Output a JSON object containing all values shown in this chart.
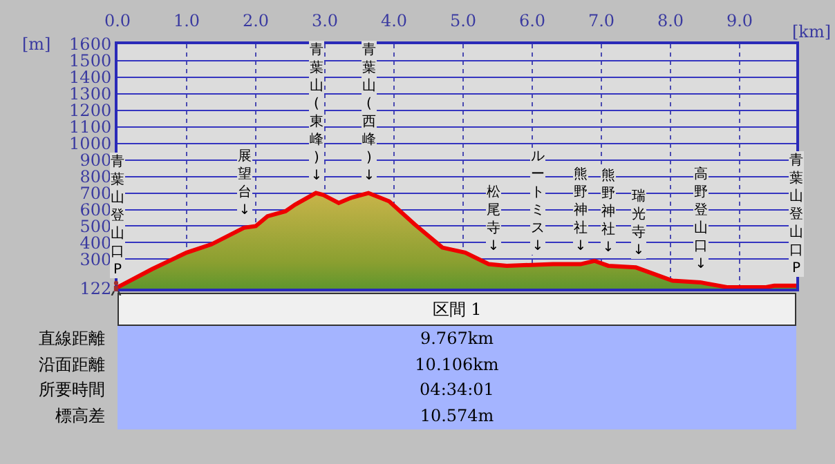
{
  "chart_data": {
    "type": "area",
    "xlabel": "[km]",
    "ylabel": "[m]",
    "x": [
      0,
      0.5,
      1.0,
      1.36,
      1.83,
      2.0,
      2.17,
      2.43,
      2.57,
      2.87,
      2.97,
      3.2,
      3.37,
      3.63,
      3.93,
      4.3,
      4.7,
      5.03,
      5.37,
      5.63,
      6.3,
      6.7,
      6.9,
      7.1,
      7.5,
      8.03,
      8.43,
      8.83,
      9.37,
      9.5,
      9.82
    ],
    "series": [
      {
        "color": "#ee0000",
        "values": [
          130,
          240,
          340,
          390,
          490,
          500,
          560,
          590,
          630,
          700,
          690,
          640,
          670,
          700,
          650,
          510,
          370,
          340,
          270,
          260,
          270,
          270,
          290,
          260,
          250,
          170,
          160,
          130,
          130,
          140,
          140
        ]
      }
    ],
    "xlim": [
      0,
      9.82
    ],
    "xticks": [
      {
        "value": 0,
        "label": "0.0"
      },
      {
        "value": 1,
        "label": "1.0"
      },
      {
        "value": 2,
        "label": "2.0"
      },
      {
        "value": 3,
        "label": "3.0"
      },
      {
        "value": 4,
        "label": "4.0"
      },
      {
        "value": 5,
        "label": "5.0"
      },
      {
        "value": 6,
        "label": "6.0"
      },
      {
        "value": 7,
        "label": "7.0"
      },
      {
        "value": 8,
        "label": "8.0"
      },
      {
        "value": 9,
        "label": "9.0"
      }
    ],
    "ylim": [
      122,
      1600
    ],
    "yticks": [
      122,
      300,
      400,
      500,
      600,
      700,
      800,
      900,
      1000,
      1100,
      1200,
      1300,
      1400,
      1500,
      1600
    ],
    "grid": true,
    "annotations": [
      {
        "text": "青葉山登山口P",
        "x": 0,
        "y": 130
      },
      {
        "text": "展望台↓",
        "x": 1.83,
        "y": 490
      },
      {
        "text": "青葉山(東峰)↓",
        "x": 2.87,
        "y": 700
      },
      {
        "text": "青葉山(西峰)↓",
        "x": 3.63,
        "y": 700
      },
      {
        "text": "松尾寺↓",
        "x": 5.43,
        "y": 270
      },
      {
        "text": "ルートミス↓",
        "x": 6.08,
        "y": 270
      },
      {
        "text": "熊野神社↓",
        "x": 6.7,
        "y": 270
      },
      {
        "text": "熊野神社↓",
        "x": 7.1,
        "y": 260
      },
      {
        "text": "瑞光寺↓",
        "x": 7.53,
        "y": 250
      },
      {
        "text": "高野登山口↓",
        "x": 8.43,
        "y": 160
      },
      {
        "text": "青葉山登山口P",
        "x": 9.82,
        "y": 140
      },
      "区間 1",
      "直線距離",
      "9.767km",
      "沿面距離",
      "10.106km",
      "所要時間",
      "04:34:01",
      "標高差",
      "10.574m"
    ]
  }
}
